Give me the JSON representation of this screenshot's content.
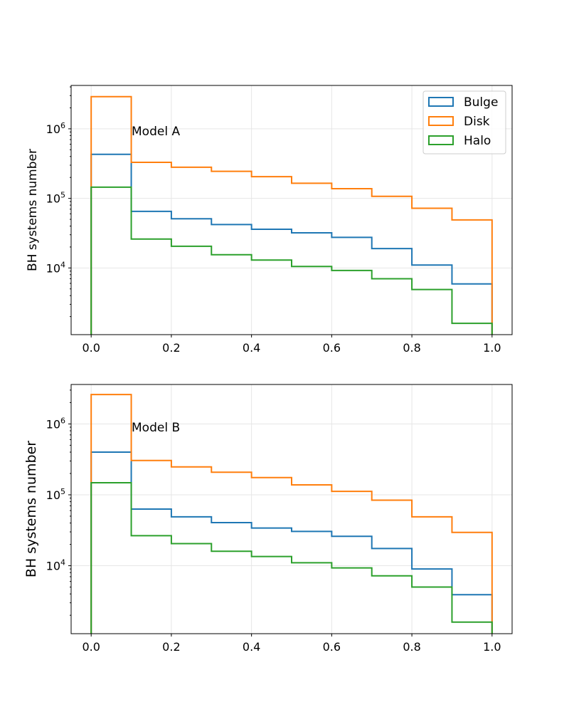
{
  "chart_data": [
    {
      "type": "histogram-step",
      "title": "",
      "annotation": "Model A",
      "xlabel": "",
      "ylabel": "BH systems number",
      "yscale": "log",
      "xlim": [
        -0.05,
        1.05
      ],
      "ylim": [
        1100,
        4200000
      ],
      "x_ticks": [
        0.0,
        0.2,
        0.4,
        0.6,
        0.8,
        1.0
      ],
      "x_tick_labels": [
        "0.0",
        "0.2",
        "0.4",
        "0.6",
        "0.8",
        "1.0"
      ],
      "y_ticks": [
        10000,
        100000,
        1000000
      ],
      "y_tick_labels": [
        {
          "base": "10",
          "exp": "4"
        },
        {
          "base": "10",
          "exp": "5"
        },
        {
          "base": "10",
          "exp": "6"
        }
      ],
      "bin_edges": [
        0.0,
        0.1,
        0.2,
        0.3,
        0.4,
        0.5,
        0.6,
        0.7,
        0.8,
        0.9,
        1.0
      ],
      "grid": true,
      "legend": "top-right",
      "series": [
        {
          "name": "Bulge",
          "color": "#1f77b4",
          "values": [
            430000,
            65000,
            51000,
            42000,
            36000,
            32000,
            27500,
            19000,
            11000,
            5900
          ]
        },
        {
          "name": "Disk",
          "color": "#ff7f0e",
          "values": [
            2900000,
            330000,
            280000,
            245000,
            205000,
            165000,
            138000,
            107000,
            72000,
            49000
          ]
        },
        {
          "name": "Halo",
          "color": "#2ca02c",
          "values": [
            145000,
            26000,
            20500,
            15500,
            13000,
            10500,
            9200,
            7000,
            4900,
            1600
          ]
        }
      ]
    },
    {
      "type": "histogram-step",
      "title": "",
      "annotation": "Model B",
      "xlabel": "",
      "ylabel": "BH systems number",
      "yscale": "log",
      "xlim": [
        -0.05,
        1.05
      ],
      "ylim": [
        1100,
        3600000
      ],
      "x_ticks": [
        0.0,
        0.2,
        0.4,
        0.6,
        0.8,
        1.0
      ],
      "x_tick_labels": [
        "0.0",
        "0.2",
        "0.4",
        "0.6",
        "0.8",
        "1.0"
      ],
      "y_ticks": [
        10000,
        100000,
        1000000
      ],
      "y_tick_labels": [
        {
          "base": "10",
          "exp": "4"
        },
        {
          "base": "10",
          "exp": "5"
        },
        {
          "base": "10",
          "exp": "6"
        }
      ],
      "bin_edges": [
        0.0,
        0.1,
        0.2,
        0.3,
        0.4,
        0.5,
        0.6,
        0.7,
        0.8,
        0.9,
        1.0
      ],
      "grid": true,
      "legend": "none",
      "series": [
        {
          "name": "Bulge",
          "color": "#1f77b4",
          "values": [
            400000,
            63000,
            49000,
            40500,
            34000,
            30500,
            26000,
            17500,
            9000,
            3900
          ]
        },
        {
          "name": "Disk",
          "color": "#ff7f0e",
          "values": [
            2600000,
            305000,
            248000,
            208000,
            175000,
            138000,
            112000,
            84000,
            49000,
            29500
          ]
        },
        {
          "name": "Halo",
          "color": "#2ca02c",
          "values": [
            148000,
            26500,
            20500,
            16000,
            13500,
            11000,
            9300,
            7200,
            5000,
            1600
          ]
        }
      ]
    }
  ]
}
